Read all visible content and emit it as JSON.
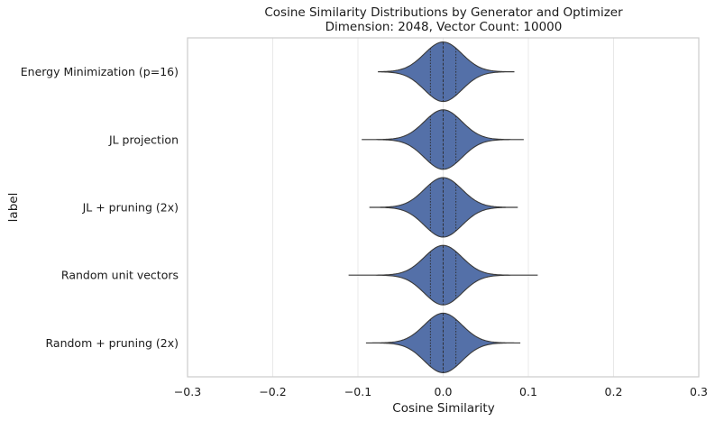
{
  "chart_data": {
    "type": "violin",
    "orientation": "horizontal",
    "title": "Cosine Similarity Distributions by Generator and Optimizer",
    "subtitle": "Dimension: 2048, Vector Count: 10000",
    "xlabel": "Cosine Similarity",
    "ylabel": "label",
    "xlim": [
      -0.3,
      0.3
    ],
    "xticks": [
      -0.3,
      -0.2,
      -0.1,
      0.0,
      0.1,
      0.2,
      0.3
    ],
    "xtick_labels": [
      "−0.3",
      "−0.2",
      "−0.1",
      "0.0",
      "0.1",
      "0.2",
      "0.3"
    ],
    "grid": "vertical",
    "fill_color": "#5470a8",
    "edge_color": "#3a3a3a",
    "categories": [
      "Energy Minimization (p=16)",
      "JL projection",
      "JL + pruning (2x)",
      "Random unit vectors",
      "Random + pruning (2x)"
    ],
    "series": [
      {
        "min": -0.076,
        "max": 0.083,
        "q1": -0.015,
        "median": 0.0,
        "q3": 0.015,
        "std": 0.022
      },
      {
        "min": -0.095,
        "max": 0.094,
        "q1": -0.015,
        "median": 0.0,
        "q3": 0.015,
        "std": 0.022
      },
      {
        "min": -0.086,
        "max": 0.087,
        "q1": -0.015,
        "median": 0.0,
        "q3": 0.015,
        "std": 0.022
      },
      {
        "min": -0.111,
        "max": 0.111,
        "q1": -0.015,
        "median": 0.0,
        "q3": 0.015,
        "std": 0.022
      },
      {
        "min": -0.09,
        "max": 0.09,
        "q1": -0.015,
        "median": 0.0,
        "q3": 0.015,
        "std": 0.022
      }
    ]
  }
}
